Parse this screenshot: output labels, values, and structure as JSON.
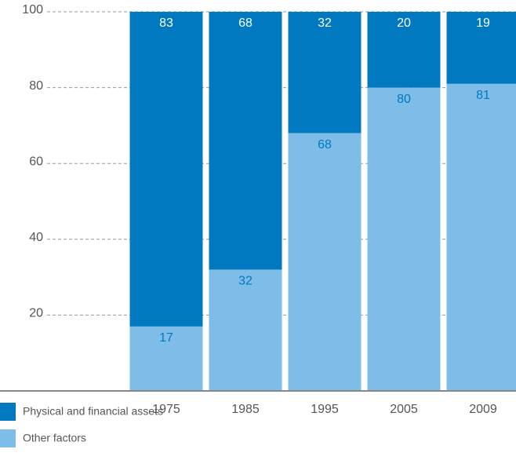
{
  "chart_data": {
    "type": "stacked_bar",
    "categories": [
      "1975",
      "1985",
      "1995",
      "2005",
      "2009"
    ],
    "series": [
      {
        "name": "Other factors",
        "color": "#7dbde8",
        "label_color": "#0079c1",
        "values": [
          17,
          32,
          68,
          80,
          81
        ]
      },
      {
        "name": "Physical and financial assets",
        "color": "#0079c1",
        "label_color": "#ffffff",
        "values": [
          83,
          68,
          32,
          20,
          19
        ]
      }
    ],
    "ylim": [
      0,
      100
    ],
    "yticks": [
      20,
      40,
      60,
      80,
      100
    ],
    "grid": true
  }
}
